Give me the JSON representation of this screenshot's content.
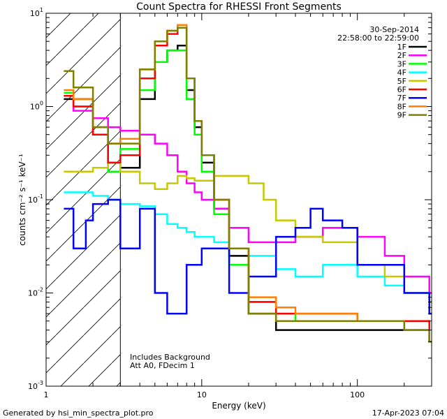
{
  "chart_data": {
    "type": "line",
    "title": "Count Spectra for RHESSI Front Segments",
    "xlabel": "Energy (keV)",
    "ylabel": "counts cm⁻² s⁻¹ keV⁻¹",
    "xscale": "log",
    "yscale": "log",
    "xlim": [
      1,
      300
    ],
    "ylim": [
      0.001,
      10
    ],
    "x_ticks": [
      {
        "value": 1,
        "label": "1"
      },
      {
        "value": 10,
        "label": "10"
      },
      {
        "value": 100,
        "label": "100"
      }
    ],
    "y_ticks": [
      {
        "value": 0.001,
        "base": "10",
        "exp": "-3"
      },
      {
        "value": 0.01,
        "base": "10",
        "exp": "-2"
      },
      {
        "value": 0.1,
        "base": "10",
        "exp": "-1"
      },
      {
        "value": 1,
        "base": "10",
        "exp": "0"
      },
      {
        "value": 10,
        "base": "10",
        "exp": "1"
      }
    ],
    "hatched_region_upper_energy": 3,
    "date": "30-Sep-2014",
    "time_range": "22:58:00 to 22:59:00",
    "annotations": [
      "Includes Background",
      "Att A0, FDecim 1"
    ],
    "legend_position": "top-right",
    "series": [
      {
        "name": "1F",
        "color": "#000000",
        "x": [
          1.3,
          1.5,
          2.0,
          2.5,
          3.0,
          4.0,
          5.0,
          6.0,
          7.0,
          8.0,
          9.0,
          10.0,
          12.0,
          15.0,
          20.0,
          30.0,
          40.0,
          60.0,
          100.0,
          200.0,
          290.0
        ],
        "y": [
          1.2,
          1.2,
          0.5,
          0.25,
          0.22,
          1.2,
          3.0,
          4.0,
          4.5,
          1.5,
          0.6,
          0.25,
          0.08,
          0.025,
          0.006,
          0.004,
          0.004,
          0.004,
          0.004,
          0.004,
          0.003
        ]
      },
      {
        "name": "2F",
        "color": "#ff00ff",
        "x": [
          1.3,
          1.5,
          2.0,
          2.5,
          3.0,
          4.0,
          5.0,
          6.0,
          7.0,
          8.0,
          9.0,
          10.0,
          12.0,
          15.0,
          20.0,
          30.0,
          40.0,
          60.0,
          100.0,
          150.0,
          200.0,
          290.0
        ],
        "y": [
          1.3,
          0.9,
          0.75,
          0.6,
          0.55,
          0.5,
          0.4,
          0.3,
          0.2,
          0.15,
          0.12,
          0.1,
          0.08,
          0.05,
          0.035,
          0.035,
          0.04,
          0.05,
          0.04,
          0.025,
          0.015,
          0.01
        ]
      },
      {
        "name": "3F",
        "color": "#00ff00",
        "x": [
          1.3,
          1.5,
          2.0,
          2.5,
          3.0,
          4.0,
          5.0,
          6.0,
          7.0,
          8.0,
          9.0,
          10.0,
          12.0,
          15.0,
          20.0,
          30.0,
          40.0,
          60.0,
          100.0,
          200.0,
          290.0
        ],
        "y": [
          1.4,
          1.0,
          0.6,
          0.2,
          0.35,
          1.5,
          3.0,
          4.0,
          4.0,
          1.2,
          0.5,
          0.2,
          0.07,
          0.02,
          0.008,
          0.006,
          0.005,
          0.005,
          0.005,
          0.004,
          0.003
        ]
      },
      {
        "name": "4F",
        "color": "#00ffff",
        "x": [
          1.3,
          1.5,
          2.0,
          2.5,
          3.0,
          4.0,
          5.0,
          6.0,
          7.0,
          8.0,
          9.0,
          10.0,
          12.0,
          15.0,
          20.0,
          30.0,
          40.0,
          60.0,
          100.0,
          150.0,
          200.0,
          290.0
        ],
        "y": [
          0.12,
          0.12,
          0.11,
          0.1,
          0.09,
          0.085,
          0.07,
          0.055,
          0.05,
          0.045,
          0.04,
          0.04,
          0.035,
          0.03,
          0.025,
          0.018,
          0.015,
          0.02,
          0.015,
          0.012,
          0.01,
          0.008
        ]
      },
      {
        "name": "5F",
        "color": "#c8c800",
        "x": [
          1.3,
          1.5,
          2.0,
          2.5,
          3.0,
          4.0,
          5.0,
          6.0,
          7.0,
          8.0,
          9.0,
          10.0,
          12.0,
          15.0,
          20.0,
          25.0,
          30.0,
          40.0,
          60.0,
          100.0,
          150.0,
          200.0,
          290.0
        ],
        "y": [
          0.2,
          0.2,
          0.22,
          0.25,
          0.2,
          0.15,
          0.13,
          0.15,
          0.18,
          0.17,
          0.16,
          0.16,
          0.18,
          0.18,
          0.15,
          0.1,
          0.06,
          0.04,
          0.035,
          0.02,
          0.015,
          0.01,
          0.008
        ]
      },
      {
        "name": "6F",
        "color": "#ff0000",
        "x": [
          1.3,
          1.5,
          2.0,
          2.5,
          3.0,
          4.0,
          5.0,
          6.0,
          7.0,
          8.0,
          9.0,
          10.0,
          12.0,
          15.0,
          20.0,
          30.0,
          40.0,
          60.0,
          100.0,
          200.0,
          290.0
        ],
        "y": [
          1.3,
          1.0,
          0.5,
          0.25,
          0.3,
          2.0,
          4.5,
          6.0,
          7.0,
          2.0,
          0.7,
          0.3,
          0.1,
          0.03,
          0.008,
          0.006,
          0.006,
          0.006,
          0.005,
          0.005,
          0.003
        ]
      },
      {
        "name": "7F",
        "color": "#0000ff",
        "x": [
          1.3,
          1.5,
          1.8,
          2.0,
          2.5,
          3.0,
          4.0,
          5.0,
          6.0,
          8.0,
          10.0,
          15.0,
          20.0,
          30.0,
          40.0,
          50.0,
          60.0,
          80.0,
          100.0,
          200.0,
          290.0
        ],
        "y": [
          0.08,
          0.03,
          0.06,
          0.09,
          0.1,
          0.03,
          0.08,
          0.01,
          0.006,
          0.02,
          0.03,
          0.01,
          0.015,
          0.04,
          0.05,
          0.08,
          0.06,
          0.05,
          0.02,
          0.01,
          0.006
        ]
      },
      {
        "name": "8F",
        "color": "#ff8000",
        "x": [
          1.3,
          1.5,
          2.0,
          2.5,
          3.0,
          4.0,
          5.0,
          6.0,
          7.0,
          8.0,
          9.0,
          10.0,
          12.0,
          15.0,
          20.0,
          30.0,
          40.0,
          60.0,
          100.0,
          200.0,
          290.0
        ],
        "y": [
          1.5,
          1.2,
          0.6,
          0.4,
          0.45,
          2.5,
          5.0,
          6.5,
          7.5,
          2.0,
          0.7,
          0.3,
          0.1,
          0.03,
          0.009,
          0.007,
          0.006,
          0.006,
          0.005,
          0.004,
          0.003
        ]
      },
      {
        "name": "9F",
        "color": "#808000",
        "x": [
          1.3,
          1.5,
          2.0,
          2.5,
          3.0,
          4.0,
          5.0,
          6.0,
          7.0,
          8.0,
          9.0,
          10.0,
          12.0,
          15.0,
          20.0,
          30.0,
          40.0,
          60.0,
          100.0,
          200.0,
          290.0
        ],
        "y": [
          2.4,
          1.6,
          0.6,
          0.4,
          0.4,
          2.5,
          5.0,
          6.5,
          7.0,
          2.0,
          0.7,
          0.3,
          0.1,
          0.03,
          0.006,
          0.005,
          0.005,
          0.005,
          0.005,
          0.004,
          0.003
        ]
      }
    ]
  },
  "footer": {
    "generated_by": "Generated by hsi_min_spectra_plot.pro",
    "timestamp": "17-Apr-2023 07:04"
  }
}
